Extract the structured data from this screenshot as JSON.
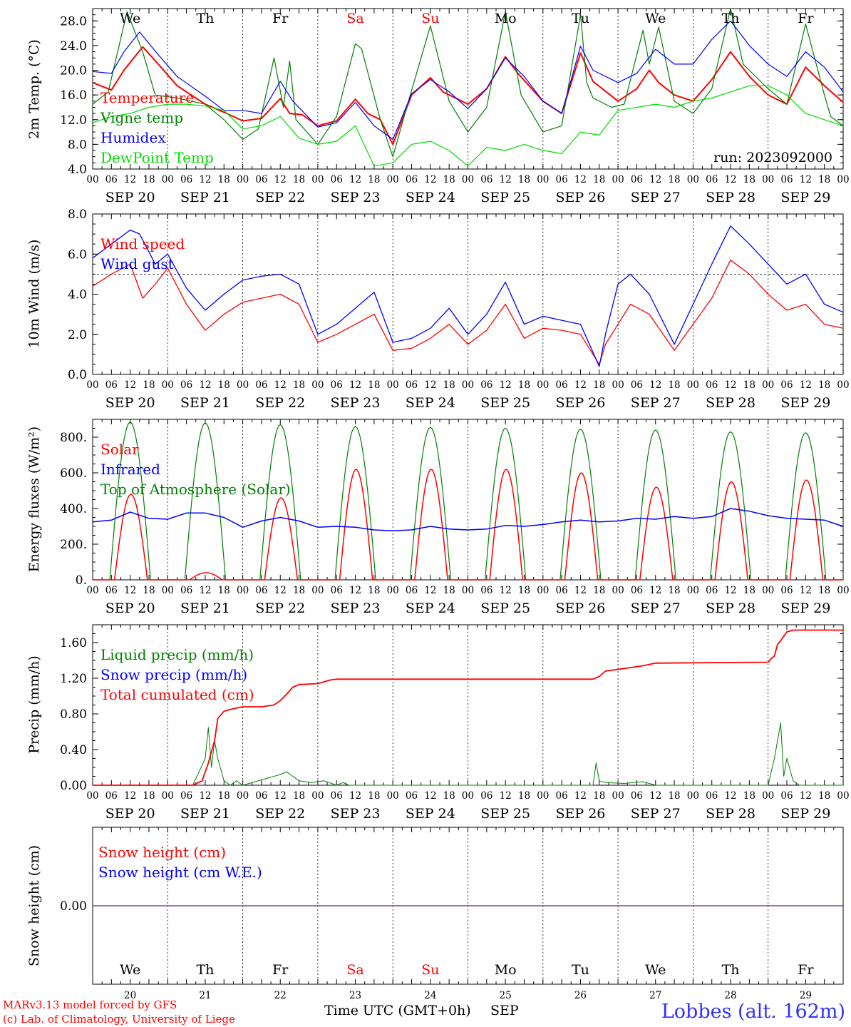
{
  "days": [
    "We",
    "Th",
    "Fr",
    "Sa",
    "Su",
    "Mo",
    "Tu",
    "We",
    "Th",
    "Fr"
  ],
  "weekend_days": [
    "Sa",
    "Su"
  ],
  "dates": [
    "SEP 20",
    "SEP 21",
    "SEP 22",
    "SEP 23",
    "SEP 24",
    "SEP 25",
    "SEP 26",
    "SEP 27",
    "SEP 28",
    "SEP 29"
  ],
  "day_numbers": [
    "20",
    "21",
    "22",
    "23",
    "24",
    "25",
    "26",
    "27",
    "28",
    "29"
  ],
  "hour_ticks": [
    "00",
    "06",
    "12",
    "18"
  ],
  "run_label": "run: 2023092000",
  "footer": {
    "model": "MARv3.13 model forced by GFS",
    "lab": "(c) Lab. of Climatology, University of Liege",
    "axis_title": "Time UTC (GMT+0h)",
    "month": "SEP",
    "station": "Lobbes (alt. 162m)"
  },
  "colors": {
    "red": "#ff0000",
    "green": "#008000",
    "blue": "#0000ff",
    "lightgreen": "#00dd00",
    "weekend": "#ff0000"
  },
  "chart_data": [
    {
      "type": "line",
      "ylabel": "2m Temp. (°C)",
      "ylim": [
        4,
        30
      ],
      "yticks": [
        "4.0",
        "8.0",
        "12.0",
        "16.0",
        "20.0",
        "24.0",
        "28.0"
      ],
      "x_unit": "hours since 2023-09-20 00 UTC",
      "series": [
        {
          "name": "Temperature",
          "color": "#ff0000",
          "x": [
            0,
            6,
            10,
            16,
            21,
            27,
            36,
            42,
            48,
            54,
            60,
            63,
            67,
            72,
            78,
            84,
            88,
            92,
            96,
            102,
            108,
            112,
            120,
            126,
            132,
            136,
            144,
            150,
            156,
            160,
            168,
            174,
            178,
            181,
            186,
            192,
            198,
            204,
            210,
            216,
            222,
            228,
            234,
            240
          ],
          "values": [
            18.0,
            16.8,
            20.0,
            23.8,
            21.0,
            17.5,
            14.5,
            13.2,
            11.8,
            12.2,
            15.4,
            13.0,
            12.8,
            11.0,
            11.8,
            15.3,
            13.0,
            12.0,
            8.0,
            16.0,
            18.8,
            16.5,
            14.5,
            17.0,
            22.2,
            19.5,
            15.0,
            13.0,
            22.8,
            18.2,
            15.0,
            17.0,
            20.0,
            18.0,
            16.0,
            15.0,
            18.5,
            23.0,
            19.0,
            16.0,
            14.5,
            20.5,
            17.5,
            14.8
          ]
        },
        {
          "name": "Vigne temp",
          "color": "#008000",
          "x": [
            0,
            5,
            11,
            16,
            20,
            27,
            36,
            42,
            48,
            53,
            58,
            61,
            63,
            65,
            72,
            78,
            84,
            86,
            92,
            96,
            101,
            108,
            114,
            120,
            126,
            132,
            137,
            144,
            150,
            156,
            158,
            160,
            166,
            170,
            176,
            178,
            181,
            186,
            192,
            198,
            204,
            208,
            216,
            222,
            228,
            234,
            236,
            240
          ],
          "values": [
            14.5,
            16.5,
            29.5,
            23.0,
            16.0,
            15.5,
            14.5,
            12.0,
            8.8,
            10.5,
            22.0,
            14.0,
            21.5,
            12.0,
            8.0,
            12.5,
            24.3,
            23.5,
            12.0,
            6.0,
            15.0,
            27.2,
            15.0,
            10.0,
            14.0,
            29.5,
            16.0,
            10.0,
            11.0,
            29.0,
            18.0,
            15.5,
            14.0,
            14.5,
            26.5,
            21.0,
            27.0,
            15.0,
            13.0,
            17.0,
            30.0,
            21.0,
            17.0,
            14.5,
            27.5,
            16.0,
            12.5,
            11.0
          ]
        },
        {
          "name": "Humidex",
          "color": "#0000ff",
          "x": [
            0,
            6,
            10,
            15,
            21,
            27,
            36,
            42,
            48,
            54,
            60,
            64,
            72,
            78,
            84,
            90,
            96,
            102,
            108,
            114,
            120,
            126,
            132,
            138,
            144,
            150,
            156,
            160,
            168,
            174,
            180,
            186,
            192,
            198,
            204,
            210,
            216,
            222,
            228,
            234,
            240
          ],
          "values": [
            19.8,
            19.5,
            23.0,
            26.2,
            22.5,
            19.0,
            15.8,
            13.5,
            13.5,
            13.0,
            18.2,
            15.0,
            10.8,
            11.5,
            14.8,
            11.0,
            8.8,
            16.2,
            18.5,
            16.5,
            13.8,
            17.0,
            22.0,
            19.0,
            15.0,
            13.0,
            23.9,
            20.0,
            18.0,
            19.5,
            23.4,
            21.0,
            21.0,
            25.0,
            28.0,
            24.0,
            21.0,
            19.0,
            23.0,
            20.5,
            16.5
          ]
        },
        {
          "name": "DewPoint Temp",
          "color": "#00dd00",
          "x": [
            0,
            6,
            12,
            18,
            24,
            30,
            36,
            42,
            48,
            54,
            60,
            66,
            72,
            78,
            84,
            90,
            96,
            102,
            108,
            114,
            120,
            126,
            132,
            138,
            144,
            150,
            156,
            162,
            168,
            174,
            180,
            186,
            192,
            198,
            204,
            210,
            216,
            222,
            228,
            234,
            240
          ],
          "values": [
            11.5,
            12.5,
            13.0,
            14.0,
            14.5,
            14.5,
            14.2,
            13.5,
            10.5,
            11.0,
            12.5,
            9.0,
            8.0,
            8.5,
            11.0,
            4.5,
            5.0,
            8.0,
            8.5,
            7.0,
            4.5,
            7.5,
            7.0,
            8.0,
            7.0,
            6.5,
            10.0,
            9.5,
            13.5,
            14.0,
            14.5,
            14.0,
            15.0,
            15.5,
            16.5,
            17.5,
            17.5,
            16.0,
            13.0,
            12.0,
            11.0
          ]
        }
      ]
    },
    {
      "type": "line",
      "ylabel": "10m Wind (m/s)",
      "ylim": [
        0,
        8
      ],
      "yticks": [
        "0.0",
        "2.0",
        "4.0",
        "6.0",
        "8.0"
      ],
      "reference_line": 5.0,
      "x_unit": "hours since 2023-09-20 00 UTC",
      "series": [
        {
          "name": "Wind speed",
          "color": "#ff0000",
          "x": [
            0,
            6,
            12,
            16,
            20,
            24,
            30,
            36,
            42,
            48,
            54,
            60,
            66,
            72,
            78,
            84,
            90,
            96,
            102,
            108,
            114,
            120,
            126,
            132,
            138,
            144,
            150,
            156,
            162,
            164,
            168,
            172,
            178,
            186,
            192,
            198,
            204,
            210,
            216,
            222,
            228,
            234,
            240
          ],
          "values": [
            4.4,
            5.0,
            5.5,
            3.8,
            4.5,
            5.3,
            3.5,
            2.2,
            3.0,
            3.6,
            3.8,
            4.0,
            3.5,
            1.6,
            2.0,
            2.5,
            3.0,
            1.2,
            1.3,
            1.8,
            2.5,
            1.5,
            2.2,
            3.5,
            1.8,
            2.3,
            2.2,
            2.0,
            0.5,
            1.5,
            2.5,
            3.5,
            3.0,
            1.2,
            2.5,
            3.8,
            5.7,
            5.0,
            4.0,
            3.2,
            3.5,
            2.5,
            2.3
          ]
        },
        {
          "name": "Wind gust",
          "color": "#0000ff",
          "x": [
            0,
            6,
            12,
            15,
            20,
            24,
            30,
            36,
            42,
            48,
            54,
            60,
            66,
            72,
            78,
            84,
            90,
            96,
            102,
            108,
            114,
            120,
            126,
            132,
            138,
            144,
            150,
            156,
            162,
            164,
            168,
            172,
            178,
            186,
            192,
            198,
            204,
            210,
            216,
            222,
            228,
            234,
            240
          ],
          "values": [
            5.8,
            6.5,
            7.2,
            7.0,
            5.5,
            6.0,
            4.3,
            3.2,
            4.0,
            4.7,
            4.9,
            5.0,
            4.5,
            2.0,
            2.5,
            3.3,
            4.1,
            1.6,
            1.8,
            2.3,
            3.3,
            2.0,
            3.0,
            4.6,
            2.5,
            2.9,
            2.7,
            2.5,
            0.4,
            2.0,
            4.5,
            5.0,
            4.0,
            1.5,
            3.5,
            5.5,
            7.4,
            6.5,
            5.5,
            4.5,
            5.0,
            3.5,
            3.1
          ]
        }
      ]
    },
    {
      "type": "line",
      "ylabel": "Energy fluxes (W/m²)",
      "ylim": [
        0,
        900
      ],
      "yticks": [
        "0.",
        "200.",
        "400.",
        "600.",
        "800."
      ],
      "x_unit": "hours since 2023-09-20 00 UTC",
      "series": [
        {
          "name": "Solar",
          "color": "#ff0000",
          "daily_peaks": [
            480,
            40,
            460,
            620,
            620,
            620,
            600,
            520,
            550,
            560
          ]
        },
        {
          "name": "Infrared",
          "color": "#0000ff",
          "x": [
            0,
            6,
            12,
            18,
            24,
            30,
            36,
            42,
            48,
            54,
            60,
            66,
            72,
            78,
            84,
            90,
            96,
            102,
            108,
            114,
            120,
            126,
            132,
            138,
            144,
            150,
            156,
            162,
            168,
            174,
            180,
            186,
            192,
            198,
            204,
            210,
            216,
            222,
            228,
            234,
            240
          ],
          "values": [
            325,
            335,
            380,
            345,
            340,
            375,
            375,
            350,
            295,
            330,
            350,
            330,
            295,
            300,
            295,
            280,
            275,
            280,
            300,
            285,
            280,
            285,
            305,
            300,
            310,
            325,
            335,
            325,
            330,
            345,
            340,
            355,
            345,
            355,
            400,
            385,
            360,
            345,
            340,
            335,
            300
          ]
        },
        {
          "name": "Top of Atmosphere (Solar)",
          "color": "#008000",
          "daily_peaks": [
            885,
            880,
            870,
            860,
            855,
            850,
            845,
            840,
            830,
            825
          ]
        }
      ]
    },
    {
      "type": "line",
      "ylabel": "Precip (mm/h)",
      "ylim": [
        0,
        1.8
      ],
      "yticks": [
        "0.00",
        "0.40",
        "0.80",
        "1.20",
        "1.60"
      ],
      "x_unit": "hours since 2023-09-20 00 UTC",
      "series": [
        {
          "name": "Liquid precip (mm/h)",
          "color": "#008000",
          "x": [
            0,
            32,
            34,
            36,
            37,
            38,
            39,
            40,
            42,
            44,
            46,
            48,
            54,
            60,
            62,
            64,
            66,
            70,
            74,
            78,
            80,
            82,
            160,
            161,
            162,
            164,
            170,
            176,
            180,
            216,
            218,
            220,
            221,
            222,
            224,
            226,
            240
          ],
          "values": [
            0,
            0,
            0.15,
            0.3,
            0.65,
            0.2,
            0.5,
            0.3,
            0.05,
            0,
            0.05,
            0,
            0.06,
            0.12,
            0.15,
            0.1,
            0.05,
            0.03,
            0.05,
            0,
            0.03,
            0,
            0,
            0.25,
            0.05,
            0.03,
            0.02,
            0.04,
            0,
            0,
            0.3,
            0.7,
            0.1,
            0.3,
            0.05,
            0,
            0
          ]
        },
        {
          "name": "Snow precip (mm/h)",
          "color": "#0000ff",
          "x": [
            0,
            240
          ],
          "values": [
            0,
            0
          ]
        },
        {
          "name": "Total cumulated (cm)",
          "color": "#ff0000",
          "x": [
            0,
            32,
            35,
            37,
            39,
            40,
            42,
            44,
            48,
            54,
            58,
            60,
            62,
            64,
            66,
            72,
            76,
            78,
            160,
            162,
            164,
            170,
            176,
            180,
            216,
            217,
            218,
            219,
            220,
            222,
            224,
            240
          ],
          "values": [
            0,
            0,
            0.05,
            0.25,
            0.5,
            0.75,
            0.83,
            0.85,
            0.88,
            0.88,
            0.9,
            0.95,
            1.02,
            1.1,
            1.13,
            1.14,
            1.18,
            1.19,
            1.19,
            1.22,
            1.28,
            1.31,
            1.34,
            1.37,
            1.38,
            1.42,
            1.45,
            1.58,
            1.62,
            1.72,
            1.74,
            1.74
          ]
        }
      ]
    },
    {
      "type": "line",
      "ylabel": "Snow height (cm)",
      "yticks": [
        "0.00"
      ],
      "x_unit": "hours since 2023-09-20 00 UTC",
      "series": [
        {
          "name": "Snow height (cm)",
          "color": "#ff0000",
          "x": [
            0,
            240
          ],
          "values": [
            0,
            0
          ]
        },
        {
          "name": "Snow height (cm W.E.)",
          "color": "#0000ff",
          "x": [
            0,
            240
          ],
          "values": [
            0,
            0
          ]
        }
      ]
    }
  ]
}
